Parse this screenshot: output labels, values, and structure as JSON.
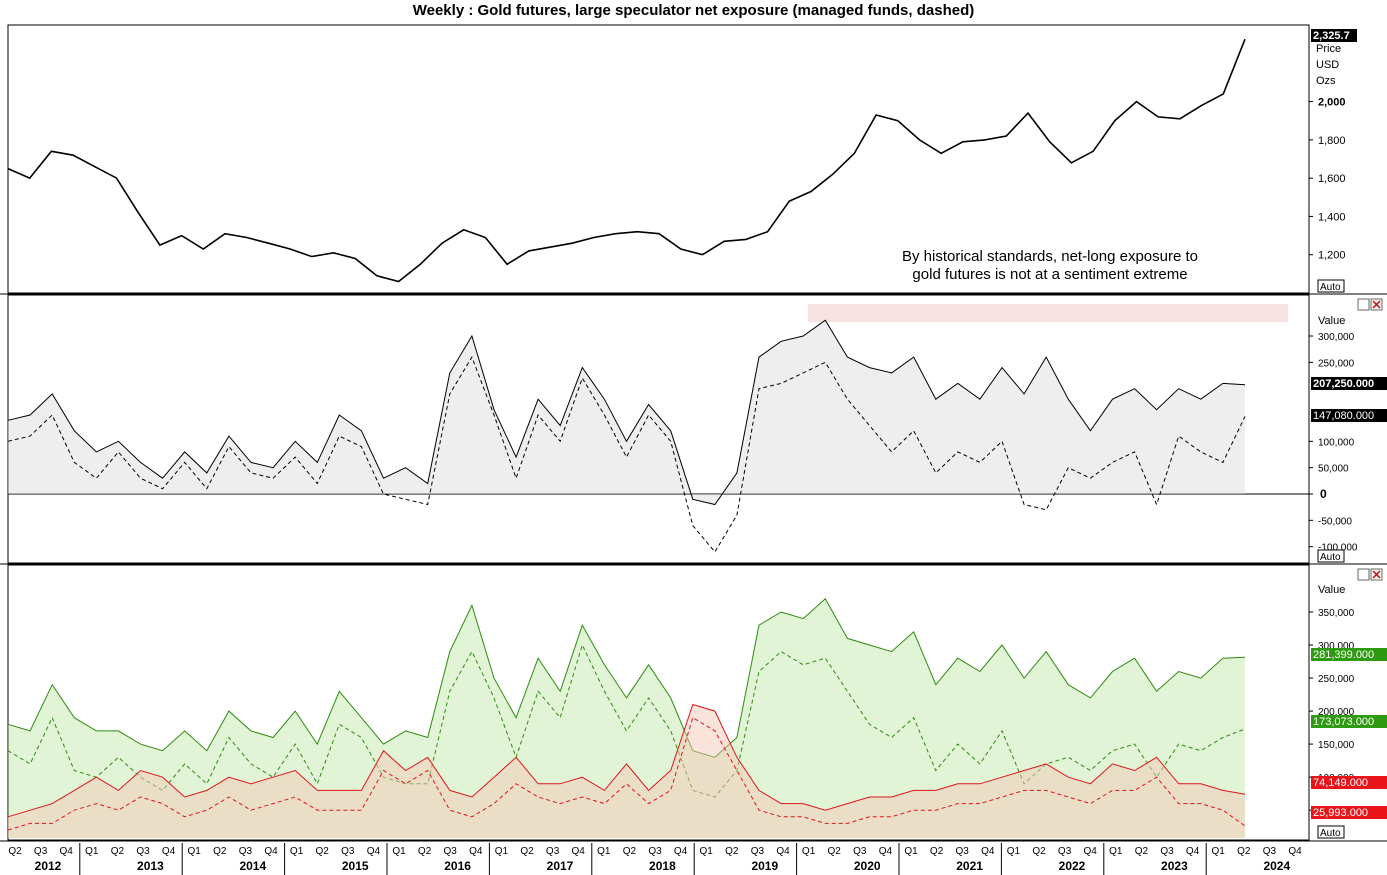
{
  "title": "Weekly : Gold futures, large speculator net exposure (managed funds, dashed)",
  "annotation_lines": [
    "By historical standards, net-long exposure to",
    "gold futures is not at a sentiment extreme"
  ],
  "auto_label": "Auto",
  "colors": {
    "price": "#000000",
    "net_fill": "#d9d9d9",
    "extreme_zone": "#f8e1e1",
    "long_line": "#2e8b10",
    "long_fill": "#a8e08a",
    "short_line": "#e0141a",
    "short_fill": "#f3c7b6",
    "badge_black": "#000000",
    "badge_green": "#2e9a12",
    "badge_red": "#e8141a"
  },
  "x_axis": {
    "quarters": [
      "Q2",
      "Q3",
      "Q4",
      "Q1",
      "Q2",
      "Q3",
      "Q4",
      "Q1",
      "Q2",
      "Q3",
      "Q4",
      "Q1",
      "Q2",
      "Q3",
      "Q4",
      "Q1",
      "Q2",
      "Q3",
      "Q4",
      "Q1",
      "Q2",
      "Q3",
      "Q4",
      "Q1",
      "Q2",
      "Q3",
      "Q4",
      "Q1",
      "Q2",
      "Q3",
      "Q4",
      "Q1",
      "Q2",
      "Q3",
      "Q4",
      "Q1",
      "Q2",
      "Q3",
      "Q4",
      "Q1",
      "Q2",
      "Q3",
      "Q4",
      "Q1",
      "Q2",
      "Q3",
      "Q4",
      "Q1",
      "Q2",
      "Q3",
      "Q4"
    ],
    "years": [
      "2012",
      "2013",
      "2014",
      "2015",
      "2016",
      "2017",
      "2018",
      "2019",
      "2020",
      "2021",
      "2022",
      "2023",
      "2024"
    ]
  },
  "chart_data": [
    {
      "type": "line",
      "name": "price-panel",
      "y_axis_header": [
        "Price",
        "USD",
        "Ozs"
      ],
      "y_ticks": [
        "1,200",
        "1,400",
        "1,600",
        "1,800",
        "2,000"
      ],
      "ylim": [
        1000,
        2400
      ],
      "last_value_label": "2,325.7",
      "x_start": "2012-Q2",
      "x_step": "quarter",
      "series": [
        {
          "values": [
            1650,
            1600,
            1740,
            1720,
            1660,
            1600,
            1420,
            1250,
            1300,
            1230,
            1310,
            1290,
            1260,
            1230,
            1190,
            1210,
            1180,
            1090,
            1060,
            1150,
            1260,
            1330,
            1290,
            1150,
            1220,
            1240,
            1260,
            1290,
            1310,
            1320,
            1310,
            1230,
            1200,
            1270,
            1280,
            1320,
            1480,
            1530,
            1620,
            1730,
            1930,
            1900,
            1800,
            1730,
            1790,
            1800,
            1820,
            1940,
            1790,
            1680,
            1740,
            1900,
            2000,
            1920,
            1910,
            1980,
            2040,
            2325.7
          ]
        }
      ]
    },
    {
      "type": "area",
      "name": "net-exposure-panel",
      "y_axis_header": "Value",
      "y_ticks": [
        "300,000",
        "250,000",
        "200,000",
        "150,000",
        "100,000",
        "50,000",
        "0",
        "-50,000",
        "-100,000"
      ],
      "ylim": [
        -130000,
        360000
      ],
      "badges": [
        "207,250.000",
        "147,080.000"
      ],
      "x_start": "2012-Q2",
      "x_step": "quarter",
      "series": [
        {
          "style": "solid",
          "values": [
            140000,
            150000,
            190000,
            120000,
            80000,
            100000,
            60000,
            30000,
            80000,
            40000,
            110000,
            60000,
            50000,
            100000,
            60000,
            150000,
            120000,
            30000,
            50000,
            20000,
            230000,
            300000,
            160000,
            70000,
            180000,
            130000,
            240000,
            180000,
            100000,
            170000,
            120000,
            -10000,
            -20000,
            40000,
            260000,
            290000,
            300000,
            330000,
            260000,
            240000,
            230000,
            260000,
            180000,
            210000,
            180000,
            240000,
            190000,
            260000,
            180000,
            120000,
            180000,
            200000,
            160000,
            200000,
            180000,
            210000,
            207250
          ]
        },
        {
          "style": "dashed",
          "values": [
            100000,
            110000,
            150000,
            60000,
            30000,
            80000,
            30000,
            10000,
            60000,
            10000,
            90000,
            40000,
            30000,
            70000,
            20000,
            110000,
            90000,
            0,
            -10000,
            -20000,
            190000,
            260000,
            150000,
            30000,
            150000,
            100000,
            220000,
            150000,
            70000,
            150000,
            100000,
            -60000,
            -110000,
            -40000,
            200000,
            210000,
            230000,
            250000,
            180000,
            130000,
            80000,
            120000,
            40000,
            80000,
            60000,
            100000,
            -20000,
            -30000,
            50000,
            30000,
            60000,
            80000,
            -20000,
            110000,
            80000,
            60000,
            147080
          ]
        }
      ]
    },
    {
      "type": "area",
      "name": "long-short-panel",
      "y_axis_header": "Value",
      "y_ticks": [
        "350,000",
        "300,000",
        "250,000",
        "200,000",
        "150,000",
        "100,000",
        "50,000"
      ],
      "ylim": [
        20000,
        400000
      ],
      "badges": [
        "281,399.000",
        "173,073.000",
        "74,149.000",
        "25,993.000"
      ],
      "x_start": "2012-Q2",
      "x_step": "quarter",
      "series": [
        {
          "style": "solid",
          "color": "long",
          "values": [
            180000,
            170000,
            240000,
            190000,
            170000,
            170000,
            150000,
            140000,
            170000,
            140000,
            200000,
            170000,
            160000,
            200000,
            150000,
            230000,
            190000,
            150000,
            170000,
            160000,
            290000,
            360000,
            250000,
            190000,
            280000,
            230000,
            330000,
            270000,
            220000,
            270000,
            220000,
            140000,
            130000,
            160000,
            330000,
            350000,
            340000,
            370000,
            310000,
            300000,
            290000,
            320000,
            240000,
            280000,
            260000,
            300000,
            250000,
            290000,
            240000,
            220000,
            260000,
            280000,
            230000,
            260000,
            250000,
            280000,
            281399
          ]
        },
        {
          "style": "dashed",
          "color": "long",
          "values": [
            140000,
            120000,
            190000,
            110000,
            100000,
            130000,
            100000,
            80000,
            120000,
            90000,
            160000,
            120000,
            100000,
            150000,
            90000,
            180000,
            160000,
            100000,
            90000,
            90000,
            230000,
            290000,
            220000,
            130000,
            230000,
            190000,
            300000,
            230000,
            170000,
            220000,
            170000,
            80000,
            70000,
            110000,
            260000,
            290000,
            270000,
            280000,
            230000,
            180000,
            160000,
            190000,
            110000,
            150000,
            120000,
            170000,
            90000,
            120000,
            130000,
            110000,
            140000,
            150000,
            100000,
            150000,
            140000,
            160000,
            173073
          ]
        },
        {
          "style": "solid",
          "color": "short",
          "values": [
            40000,
            50000,
            60000,
            80000,
            100000,
            80000,
            110000,
            100000,
            70000,
            80000,
            100000,
            90000,
            100000,
            110000,
            80000,
            80000,
            80000,
            140000,
            110000,
            130000,
            80000,
            70000,
            100000,
            130000,
            90000,
            90000,
            100000,
            80000,
            120000,
            80000,
            110000,
            210000,
            200000,
            130000,
            80000,
            60000,
            60000,
            50000,
            60000,
            70000,
            70000,
            80000,
            80000,
            90000,
            90000,
            100000,
            110000,
            120000,
            100000,
            90000,
            120000,
            110000,
            130000,
            90000,
            90000,
            80000,
            74149
          ]
        },
        {
          "style": "dashed",
          "color": "short",
          "values": [
            20000,
            30000,
            30000,
            50000,
            60000,
            50000,
            70000,
            60000,
            40000,
            50000,
            70000,
            50000,
            60000,
            70000,
            50000,
            50000,
            50000,
            110000,
            90000,
            110000,
            50000,
            40000,
            60000,
            90000,
            70000,
            60000,
            70000,
            60000,
            90000,
            60000,
            80000,
            190000,
            170000,
            110000,
            50000,
            40000,
            40000,
            30000,
            30000,
            40000,
            40000,
            50000,
            50000,
            60000,
            60000,
            70000,
            80000,
            80000,
            70000,
            60000,
            80000,
            80000,
            100000,
            60000,
            60000,
            50000,
            25993
          ]
        }
      ]
    }
  ]
}
